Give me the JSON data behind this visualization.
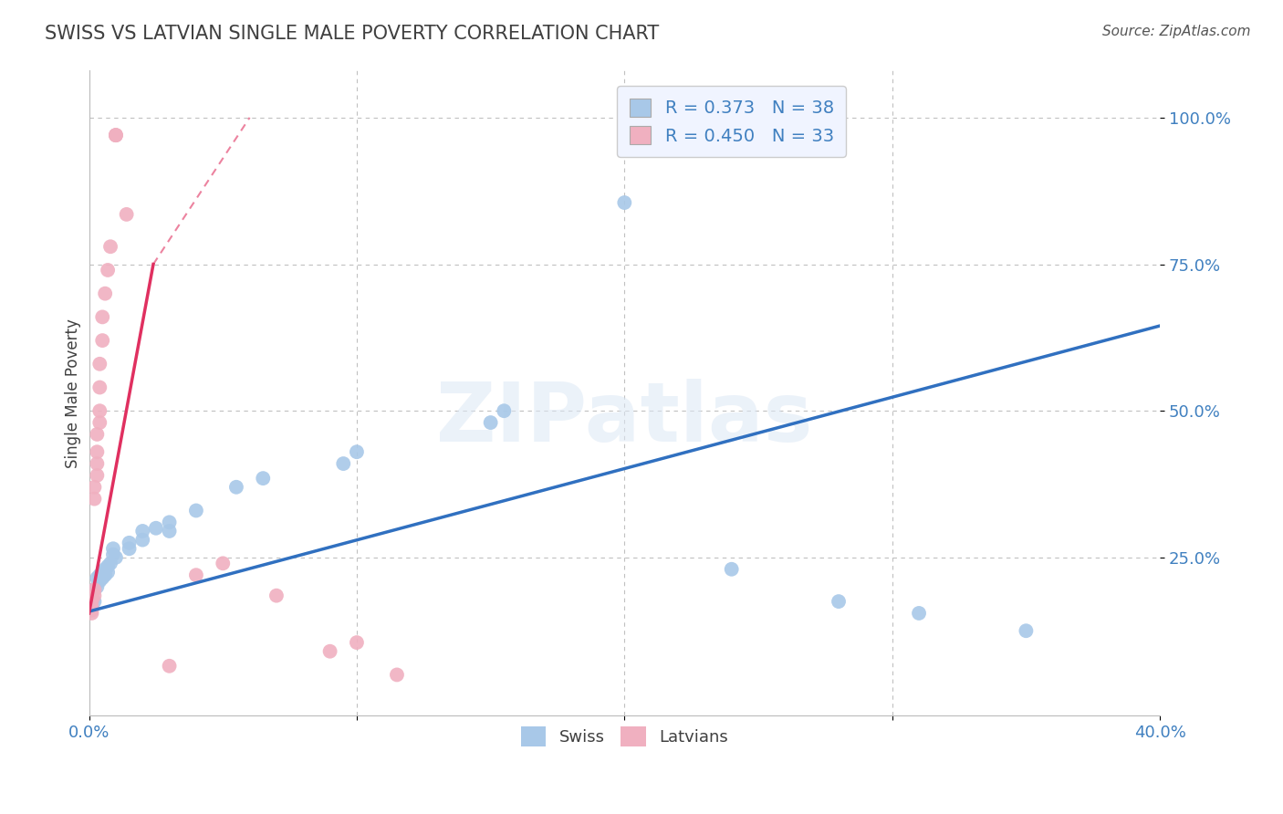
{
  "title": "SWISS VS LATVIAN SINGLE MALE POVERTY CORRELATION CHART",
  "source": "Source: ZipAtlas.com",
  "xlabel": "",
  "ylabel": "Single Male Poverty",
  "watermark": "ZIPatlas",
  "xlim": [
    0.0,
    0.4
  ],
  "ylim": [
    -0.02,
    1.08
  ],
  "xticks": [
    0.0,
    0.1,
    0.2,
    0.3,
    0.4
  ],
  "xticklabels": [
    "0.0%",
    "",
    "",
    "",
    "40.0%"
  ],
  "yticks": [
    0.25,
    0.5,
    0.75,
    1.0
  ],
  "yticklabels": [
    "25.0%",
    "50.0%",
    "75.0%",
    "100.0%"
  ],
  "swiss_R": "0.373",
  "swiss_N": "38",
  "latvian_R": "0.450",
  "latvian_N": "33",
  "swiss_color": "#a8c8e8",
  "latvian_color": "#f0b0c0",
  "swiss_line_color": "#3070c0",
  "latvian_line_color": "#e03060",
  "swiss_scatter": [
    [
      0.001,
      0.175
    ],
    [
      0.001,
      0.185
    ],
    [
      0.001,
      0.165
    ],
    [
      0.002,
      0.195
    ],
    [
      0.002,
      0.175
    ],
    [
      0.003,
      0.2
    ],
    [
      0.003,
      0.215
    ],
    [
      0.004,
      0.21
    ],
    [
      0.004,
      0.22
    ],
    [
      0.005,
      0.215
    ],
    [
      0.005,
      0.225
    ],
    [
      0.006,
      0.22
    ],
    [
      0.006,
      0.23
    ],
    [
      0.007,
      0.225
    ],
    [
      0.007,
      0.235
    ],
    [
      0.008,
      0.24
    ],
    [
      0.009,
      0.255
    ],
    [
      0.009,
      0.265
    ],
    [
      0.01,
      0.25
    ],
    [
      0.015,
      0.265
    ],
    [
      0.015,
      0.275
    ],
    [
      0.02,
      0.28
    ],
    [
      0.02,
      0.295
    ],
    [
      0.025,
      0.3
    ],
    [
      0.03,
      0.31
    ],
    [
      0.03,
      0.295
    ],
    [
      0.04,
      0.33
    ],
    [
      0.055,
      0.37
    ],
    [
      0.065,
      0.385
    ],
    [
      0.095,
      0.41
    ],
    [
      0.1,
      0.43
    ],
    [
      0.15,
      0.48
    ],
    [
      0.155,
      0.5
    ],
    [
      0.2,
      0.855
    ],
    [
      0.24,
      0.23
    ],
    [
      0.28,
      0.175
    ],
    [
      0.31,
      0.155
    ],
    [
      0.35,
      0.125
    ]
  ],
  "latvian_scatter": [
    [
      0.001,
      0.175
    ],
    [
      0.001,
      0.18
    ],
    [
      0.001,
      0.165
    ],
    [
      0.001,
      0.155
    ],
    [
      0.001,
      0.16
    ],
    [
      0.002,
      0.195
    ],
    [
      0.002,
      0.185
    ],
    [
      0.002,
      0.35
    ],
    [
      0.002,
      0.37
    ],
    [
      0.003,
      0.39
    ],
    [
      0.003,
      0.41
    ],
    [
      0.003,
      0.43
    ],
    [
      0.003,
      0.46
    ],
    [
      0.004,
      0.48
    ],
    [
      0.004,
      0.5
    ],
    [
      0.004,
      0.54
    ],
    [
      0.004,
      0.58
    ],
    [
      0.005,
      0.62
    ],
    [
      0.005,
      0.66
    ],
    [
      0.006,
      0.7
    ],
    [
      0.007,
      0.74
    ],
    [
      0.008,
      0.78
    ],
    [
      0.01,
      0.97
    ],
    [
      0.01,
      0.97
    ],
    [
      0.01,
      0.97
    ],
    [
      0.014,
      0.835
    ],
    [
      0.03,
      0.065
    ],
    [
      0.04,
      0.22
    ],
    [
      0.05,
      0.24
    ],
    [
      0.07,
      0.185
    ],
    [
      0.09,
      0.09
    ],
    [
      0.1,
      0.105
    ],
    [
      0.115,
      0.05
    ]
  ],
  "swiss_line": [
    [
      0.0,
      0.158
    ],
    [
      0.4,
      0.645
    ]
  ],
  "latvian_line_solid": [
    [
      0.0,
      0.155
    ],
    [
      0.024,
      0.75
    ]
  ],
  "latvian_line_dash": [
    [
      0.024,
      0.75
    ],
    [
      0.06,
      1.0
    ]
  ],
  "background_color": "#ffffff",
  "grid_color": "#c0c0c0",
  "title_color": "#404040",
  "axis_color": "#4080c0",
  "legend_box_color": "#f0f4ff"
}
